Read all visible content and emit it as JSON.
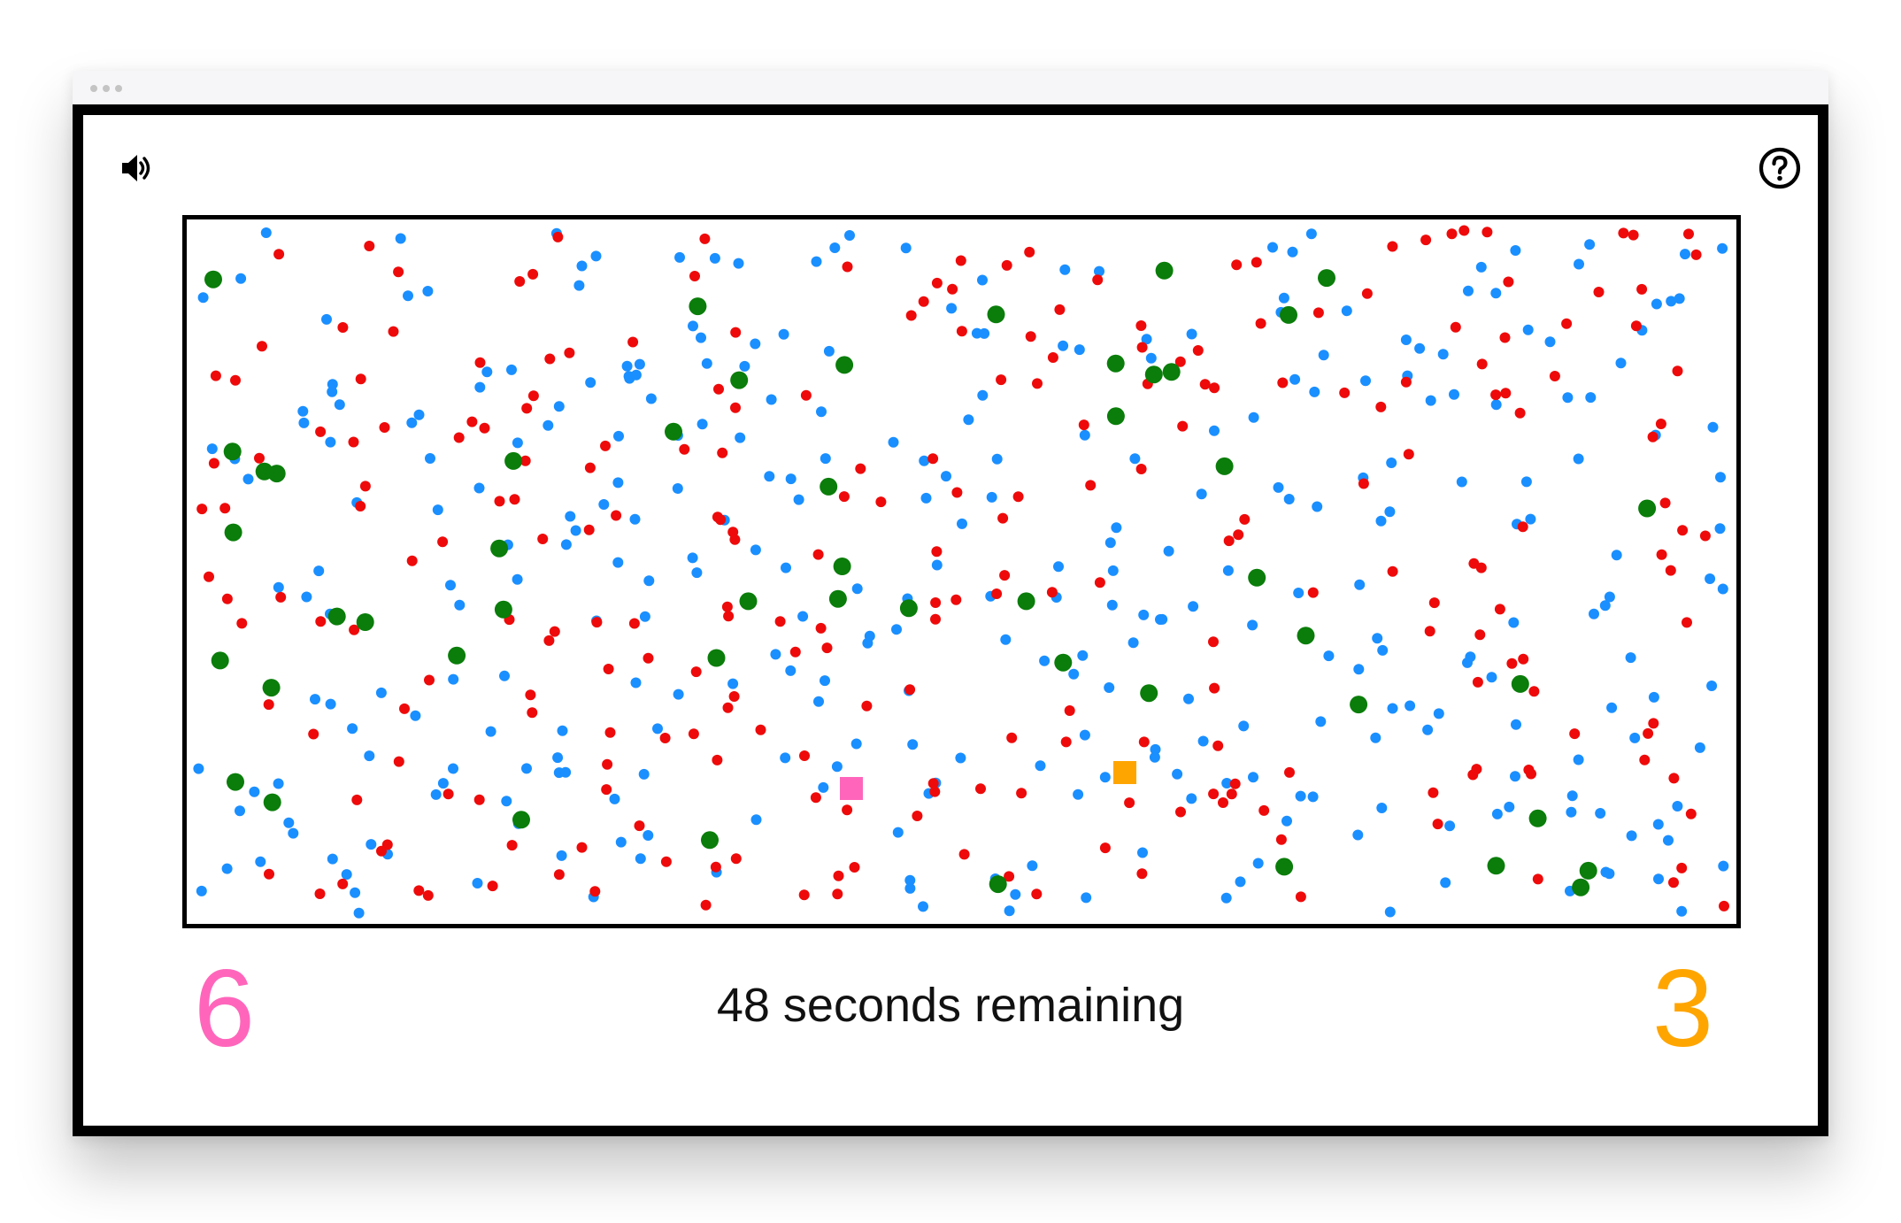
{
  "game": {
    "timer_value": "48",
    "timer_suffix": "seconds remaining",
    "player_left_score": "6",
    "player_right_score": "3"
  },
  "colors": {
    "player_left": "#ff66bb",
    "player_right": "#ffa500",
    "dot_blue": "#1a8fff",
    "dot_red": "#ee0a0a",
    "dot_green": "#0a7d0a",
    "border": "#000000"
  },
  "icons": {
    "sound": "speaker-volume-icon",
    "help": "question-circle-icon"
  }
}
